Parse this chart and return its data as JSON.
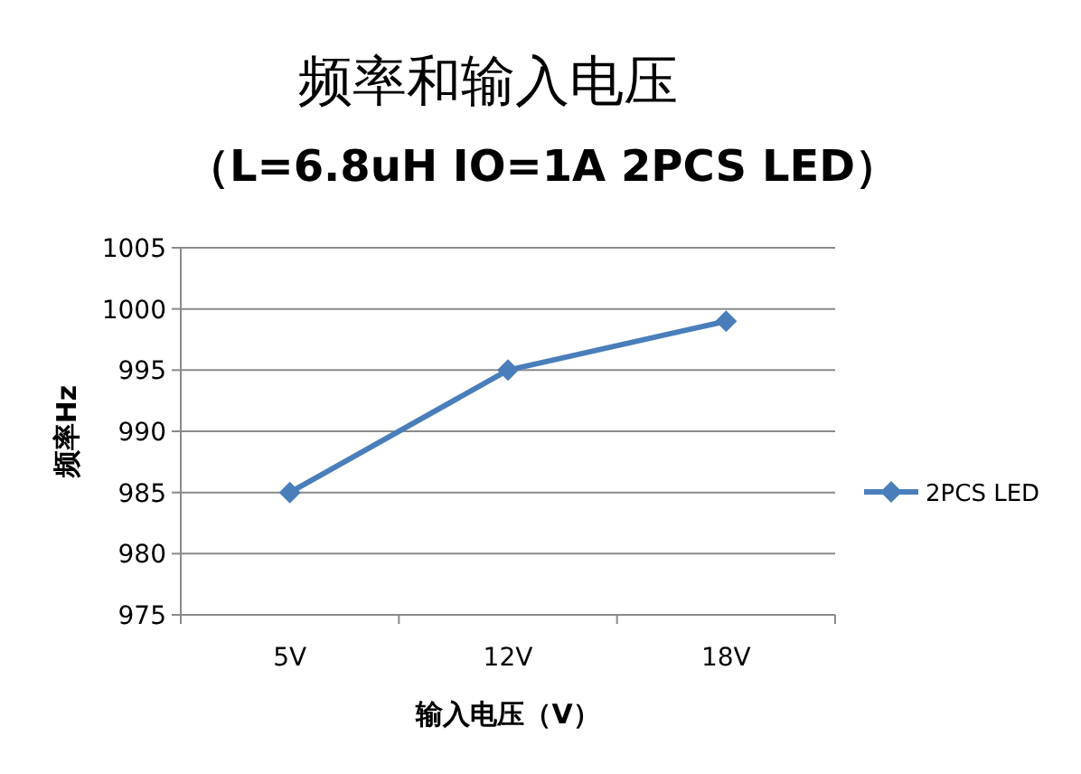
{
  "chart_data": {
    "type": "line",
    "title": "频率和输入电压",
    "subtitle": "（L=6.8uH IO=1A 2PCS LED）",
    "xlabel": "输入电压（V）",
    "ylabel": "频率Hz",
    "categories": [
      "5V",
      "12V",
      "18V"
    ],
    "series": [
      {
        "name": "2PCS LED",
        "color": "#4a7ebb",
        "values": [
          985,
          995,
          999
        ]
      }
    ],
    "ylim": [
      975,
      1005
    ],
    "yticks": [
      975,
      980,
      985,
      990,
      995,
      1000,
      1005
    ],
    "grid": "y",
    "legend": "right",
    "marker": "diamond",
    "line_style": "solid"
  }
}
